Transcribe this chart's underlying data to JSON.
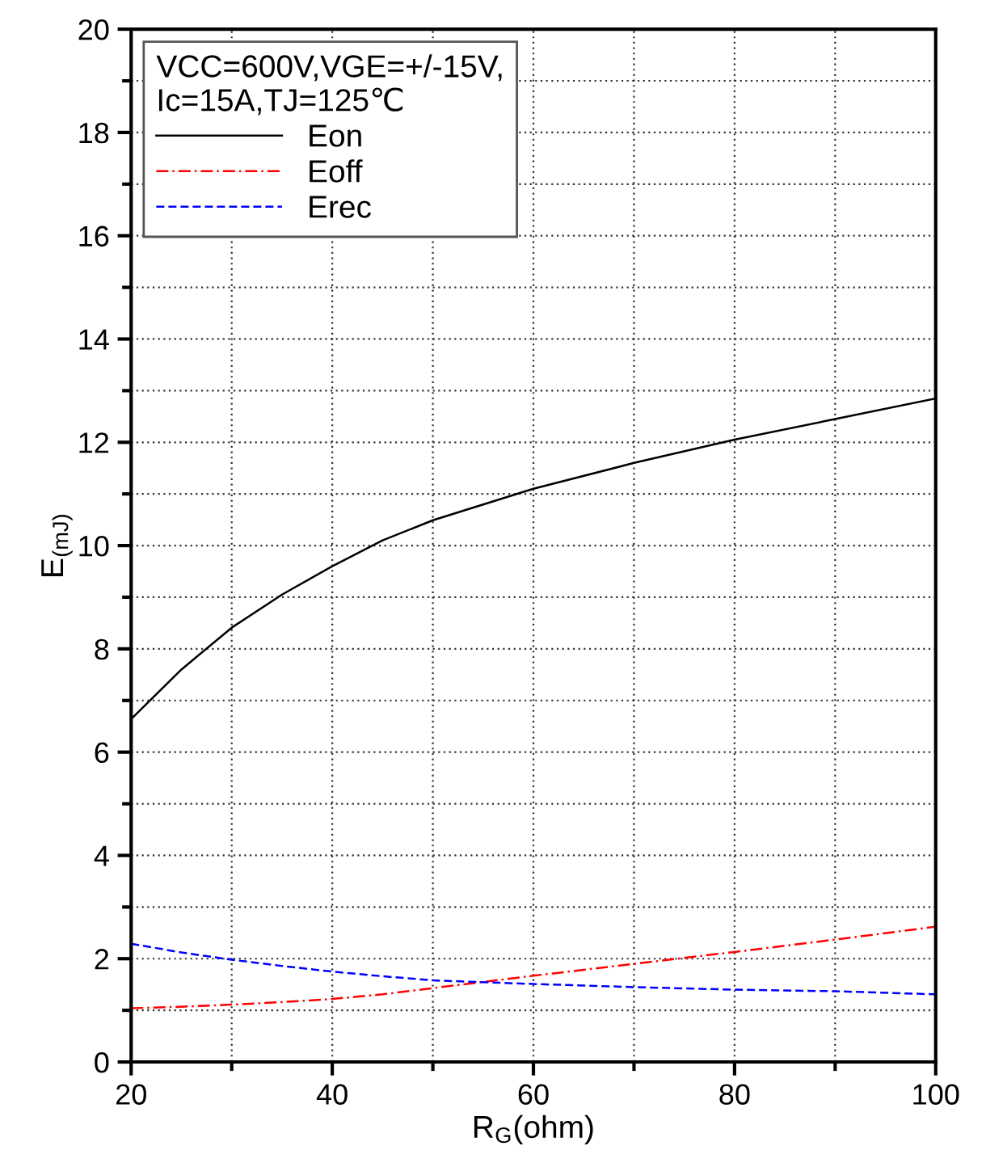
{
  "chart_data": {
    "type": "line",
    "xlabel": "R$_{G}$(ohm)",
    "ylabel": "E$_{(mJ)}$",
    "legend_title": "VCC=600V,VGE=+/-15V,\nIc=15A,TJ=125℃",
    "x": [
      20,
      25,
      30,
      35,
      40,
      45,
      50,
      60,
      70,
      80,
      90,
      100
    ],
    "series": [
      {
        "name": "Eon",
        "color": "#000000",
        "line_style": "solid",
        "values": [
          6.64,
          7.6,
          8.41,
          9.05,
          9.6,
          10.1,
          10.49,
          11.1,
          11.6,
          12.05,
          12.45,
          12.85
        ]
      },
      {
        "name": "Eoff",
        "color": "#ff0000",
        "line_style": "dashdot",
        "values": [
          1.04,
          1.07,
          1.11,
          1.16,
          1.22,
          1.31,
          1.43,
          1.67,
          1.9,
          2.13,
          2.37,
          2.62
        ]
      },
      {
        "name": "Erec",
        "color": "#0000ff",
        "line_style": "dashed",
        "values": [
          2.29,
          2.12,
          1.98,
          1.86,
          1.75,
          1.66,
          1.58,
          1.51,
          1.45,
          1.4,
          1.37,
          1.31
        ]
      }
    ],
    "xlim": [
      20,
      100
    ],
    "ylim": [
      0,
      20
    ],
    "xticks": [
      20,
      {
        "value": 30,
        "label": null
      },
      40,
      {
        "value": 50,
        "label": null
      },
      60,
      {
        "value": 70,
        "label": null
      },
      80,
      {
        "value": 90,
        "label": null
      },
      100
    ],
    "yticks": [
      0,
      {
        "value": 1,
        "label": null
      },
      2,
      {
        "value": 3,
        "label": null
      },
      4,
      {
        "value": 5,
        "label": null
      },
      6,
      {
        "value": 7,
        "label": null
      },
      8,
      {
        "value": 9,
        "label": null
      },
      10,
      {
        "value": 11,
        "label": null
      },
      12,
      {
        "value": 13,
        "label": null
      },
      14,
      {
        "value": 15,
        "label": null
      },
      16,
      {
        "value": 17,
        "label": null
      },
      18,
      {
        "value": 19,
        "label": null
      },
      20
    ],
    "grid": true,
    "legend": "top left"
  }
}
